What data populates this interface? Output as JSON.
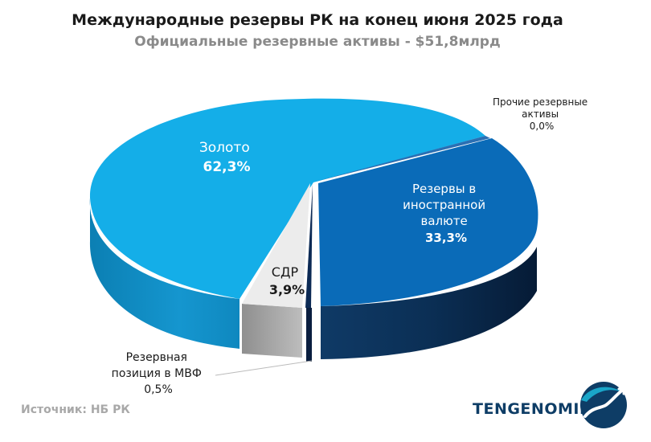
{
  "title": "Международные резервы РК на конец июня 2025 года",
  "subtitle": "Официальные резервные активы - $51,8млрд",
  "source": "Источник: НБ РК",
  "brand": "TENGENOMIKA",
  "chart_data": {
    "type": "pie",
    "title": "Международные резервы РК на конец июня 2025 года",
    "subtitle": "Официальные резервные активы - $51,8млрд",
    "labels": {
      "gold": [
        "Золото",
        "62,3%"
      ],
      "fx": [
        "Резервы в",
        "иностранной",
        "валюте",
        "33,3%"
      ],
      "sdr": [
        "СДР",
        "3,9%"
      ],
      "imf": [
        "Резервная",
        "позиция в МВФ",
        "0,5%"
      ],
      "other": [
        "Прочие резервные",
        "активы",
        "0,0%"
      ]
    },
    "slices": [
      {
        "name": "Резервы в иностранной валюте",
        "value": 33.3,
        "color": "#0a6bb8"
      },
      {
        "name": "Резервная позиция в МВФ",
        "value": 0.5,
        "color": "#0c2a55"
      },
      {
        "name": "СДР",
        "value": 3.9,
        "color": "#ececec"
      },
      {
        "name": "Золото",
        "value": 62.3,
        "color": "#14aee8"
      },
      {
        "name": "Прочие резервные активы",
        "value": 0.0,
        "color": "#1f5fa3"
      }
    ]
  }
}
